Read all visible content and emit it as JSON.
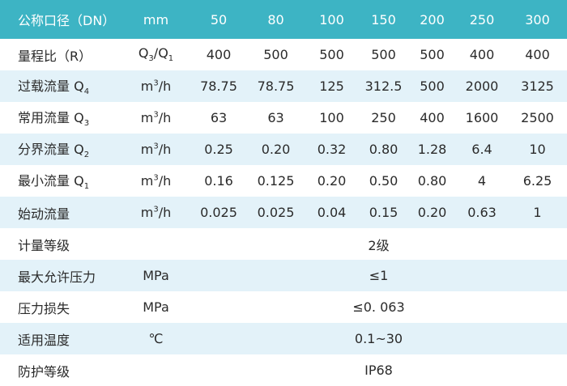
{
  "table": {
    "header": [
      "公称口径（DN）",
      "mm",
      "50",
      "80",
      "100",
      "150",
      "200",
      "250",
      "300"
    ],
    "rows": [
      {
        "cells": [
          "量程比（R）",
          [
            "Q",
            {
              "sub": "3"
            },
            "/Q",
            {
              "sub": "1"
            }
          ],
          "400",
          "500",
          "500",
          "500",
          "500",
          "400",
          "400"
        ]
      },
      {
        "cells": [
          [
            "过载流量 Q",
            {
              "sub": "4"
            }
          ],
          [
            "m",
            {
              "sup": "3"
            },
            "/h"
          ],
          "78.75",
          "78.75",
          "125",
          "312.5",
          "500",
          "2000",
          "3125"
        ]
      },
      {
        "cells": [
          [
            "常用流量 Q",
            {
              "sub": "3"
            }
          ],
          [
            "m",
            {
              "sup": "3"
            },
            "/h"
          ],
          "63",
          "63",
          "100",
          "250",
          "400",
          "1600",
          "2500"
        ]
      },
      {
        "cells": [
          [
            "分界流量 Q",
            {
              "sub": "2"
            }
          ],
          [
            "m",
            {
              "sup": "3"
            },
            "/h"
          ],
          "0.25",
          "0.20",
          "0.32",
          "0.80",
          "1.28",
          "6.4",
          "10"
        ]
      },
      {
        "cells": [
          [
            "最小流量 Q",
            {
              "sub": "1"
            }
          ],
          [
            "m",
            {
              "sup": "3"
            },
            "/h"
          ],
          "0.16",
          "0.125",
          "0.20",
          "0.50",
          "0.80",
          "4",
          "6.25"
        ]
      },
      {
        "cells": [
          "始动流量",
          [
            "m",
            {
              "sup": "3"
            },
            "/h"
          ],
          "0.025",
          "0.025",
          "0.04",
          "0.15",
          "0.20",
          "0.63",
          "1"
        ]
      },
      {
        "cells": [
          "计量等级",
          null,
          "2级"
        ]
      },
      {
        "cells": [
          "最大允许压力",
          "MPa",
          "≤1"
        ]
      },
      {
        "cells": [
          "压力损失",
          "MPa",
          "≤0. 063"
        ]
      },
      {
        "cells": [
          "适用温度",
          "℃",
          "0.1~30"
        ]
      },
      {
        "cells": [
          "防护等级",
          null,
          "IP68"
        ]
      }
    ]
  }
}
